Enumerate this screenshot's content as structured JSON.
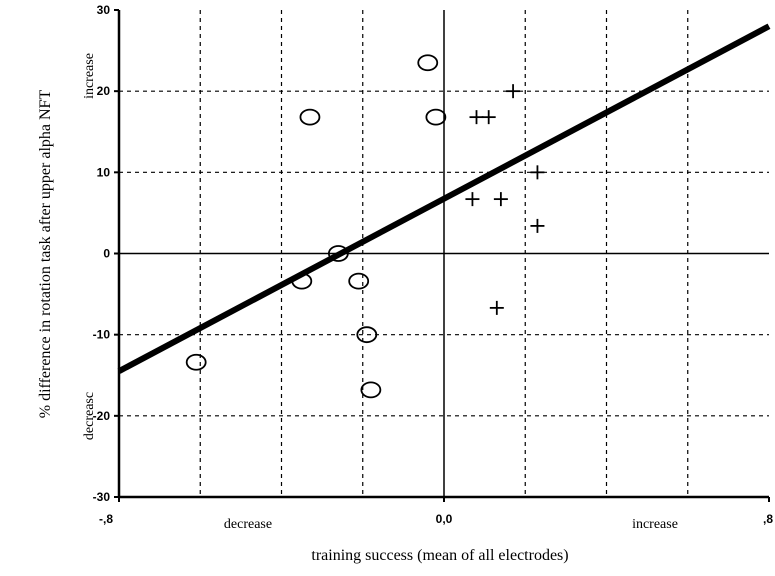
{
  "chart_data": {
    "type": "scatter",
    "xlabel": "training success (mean of all electrodes)",
    "ylabel": "% difference in rotation task after upper alpha NFT",
    "xlim": [
      -0.8,
      0.8
    ],
    "ylim": [
      -30,
      30
    ],
    "x_ticks": [
      -0.8,
      0.0,
      0.8
    ],
    "x_tick_labels": [
      ",8",
      "0,0",
      ",8"
    ],
    "x_tick_labels_display": [
      "-,8",
      "0,0",
      ",8"
    ],
    "y_ticks": [
      -30,
      -20,
      -10,
      0,
      10,
      20,
      30
    ],
    "y_tick_labels": [
      "-30",
      "-20",
      "-10",
      "0",
      "10",
      "20",
      "30"
    ],
    "x_grid": [
      -0.6,
      -0.4,
      -0.2,
      0.2,
      0.4,
      0.6
    ],
    "y_grid": [
      -20,
      -10,
      10,
      20
    ],
    "grid": true,
    "annotations": {
      "x_decrease": "decrease",
      "x_increase": "increase",
      "y_increase": "increase",
      "y_decrease": "decreasc"
    },
    "series": [
      {
        "marker": "circle",
        "points": [
          {
            "x": -0.04,
            "y": 23.5
          },
          {
            "x": -0.33,
            "y": 16.8
          },
          {
            "x": -0.02,
            "y": 16.8
          },
          {
            "x": -0.26,
            "y": 0.0
          },
          {
            "x": -0.35,
            "y": -3.4
          },
          {
            "x": -0.21,
            "y": -3.4
          },
          {
            "x": -0.19,
            "y": -10.0
          },
          {
            "x": -0.61,
            "y": -13.4
          },
          {
            "x": -0.18,
            "y": -16.8
          }
        ]
      },
      {
        "marker": "plus",
        "points": [
          {
            "x": 0.17,
            "y": 20.0
          },
          {
            "x": 0.08,
            "y": 16.8
          },
          {
            "x": 0.11,
            "y": 16.8
          },
          {
            "x": 0.23,
            "y": 10.0
          },
          {
            "x": 0.07,
            "y": 6.7
          },
          {
            "x": 0.14,
            "y": 6.7
          },
          {
            "x": 0.23,
            "y": 3.4
          },
          {
            "x": 0.13,
            "y": -6.7
          }
        ]
      }
    ],
    "regression_line": {
      "x": [
        -0.8,
        0.8
      ],
      "y": [
        -14.5,
        28.0
      ]
    }
  }
}
